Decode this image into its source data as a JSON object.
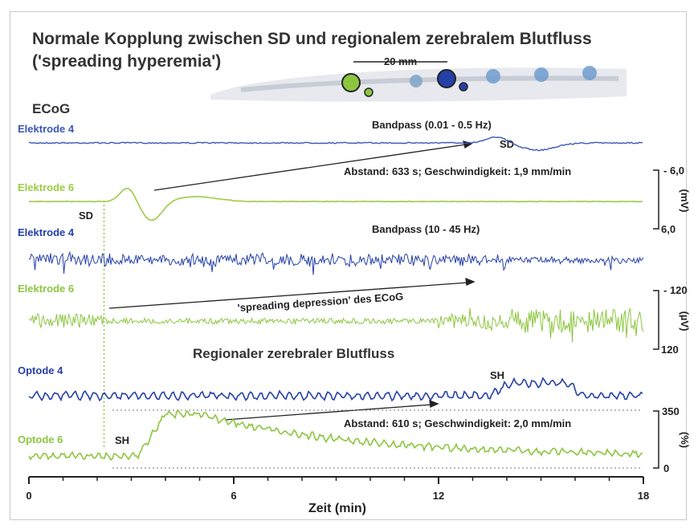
{
  "chart_data": {
    "type": "line",
    "title": "Normale Kopplung zwischen SD und regionalem zerebralem Blutfluss",
    "subtitle": "('spreading hyperemia')",
    "scale_bar": "20 mm",
    "ecog_header": "ECoG",
    "section_blood_flow": "Regionaler zerebraler Blutfluss",
    "xlabel": "Zeit (min)",
    "xlim": [
      0,
      18
    ],
    "xticks": [
      "0",
      "6",
      "12",
      "18"
    ],
    "panels": [
      {
        "filter_label": "Bandpass (0.01 - 0.5 Hz)",
        "unit": "(mV)",
        "scale_top": "- 6,0",
        "scale_bottom": "6,0",
        "series": [
          {
            "name": "Elektrode 4",
            "color": "#3a56b8",
            "event_label": "SD",
            "event_time_min": 14.1
          },
          {
            "name": "Elektrode 6",
            "color": "#9ccc45",
            "event_label": "SD",
            "event_time_min": 3.6
          }
        ],
        "annotation": "Abstand: 633 s; Geschwindigkeit: 1,9 mm/min"
      },
      {
        "filter_label": "Bandpass (10 - 45 Hz)",
        "unit": "(µV)",
        "scale_top": "- 120",
        "scale_bottom": "120",
        "series": [
          {
            "name": "Elektrode 4",
            "color": "#2540a8"
          },
          {
            "name": "Elektrode 6",
            "color": "#8cc63f"
          }
        ],
        "annotation": "'spreading depression' des ECoG"
      },
      {
        "unit": "(%)",
        "scale_top": "350",
        "scale_bottom": "0",
        "series": [
          {
            "name": "Optode 4",
            "color": "#2540a8",
            "event_label": "SH",
            "event_time_min": 13.5
          },
          {
            "name": "Optode 6",
            "color": "#8cc63f",
            "event_label": "SH",
            "event_time_min": 3.2
          }
        ],
        "annotation": "Abstand: 610 s; Geschwindigkeit: 2,0 mm/min"
      }
    ],
    "sd_marker_label": "SD",
    "sd_marker_time_min": 2.2
  }
}
